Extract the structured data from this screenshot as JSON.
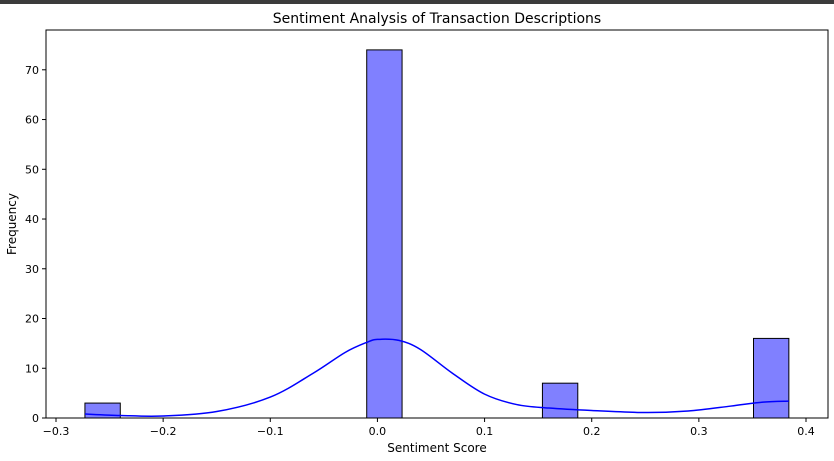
{
  "chart_data": {
    "type": "bar",
    "title": "Sentiment Analysis of Transaction Descriptions",
    "xlabel": "Sentiment Score",
    "ylabel": "Frequency",
    "xlim": [
      -0.3,
      0.4
    ],
    "ylim": [
      0,
      78
    ],
    "xticks": [
      -0.3,
      -0.2,
      -0.1,
      0.0,
      0.1,
      0.2,
      0.3,
      0.4
    ],
    "xtick_labels": [
      "−0.3",
      "−0.2",
      "−0.1",
      "0.0",
      "0.1",
      "0.2",
      "0.3",
      "0.4"
    ],
    "yticks": [
      0,
      10,
      20,
      30,
      40,
      50,
      60,
      70
    ],
    "ytick_labels": [
      "0",
      "10",
      "20",
      "30",
      "40",
      "50",
      "60",
      "70"
    ],
    "bins": [
      {
        "x0": -0.273,
        "x1": -0.24,
        "count": 3
      },
      {
        "x0": -0.01,
        "x1": 0.023,
        "count": 74
      },
      {
        "x0": 0.154,
        "x1": 0.187,
        "count": 7
      },
      {
        "x0": 0.351,
        "x1": 0.384,
        "count": 16
      }
    ],
    "kde": {
      "x": [
        -0.273,
        -0.24,
        -0.2,
        -0.15,
        -0.1,
        -0.06,
        -0.03,
        -0.01,
        0.0,
        0.02,
        0.04,
        0.07,
        0.1,
        0.13,
        0.16,
        0.2,
        0.25,
        0.29,
        0.33,
        0.36,
        0.384
      ],
      "y": [
        0.8,
        0.5,
        0.4,
        1.3,
        4.2,
        9.0,
        13.2,
        15.2,
        15.8,
        15.6,
        13.8,
        9.0,
        4.8,
        2.7,
        2.0,
        1.5,
        1.1,
        1.4,
        2.4,
        3.2,
        3.4
      ]
    },
    "grid": false,
    "colors": {
      "bar_fill": "#8080ff",
      "bar_edge": "#000000",
      "kde": "#0000ff"
    }
  }
}
